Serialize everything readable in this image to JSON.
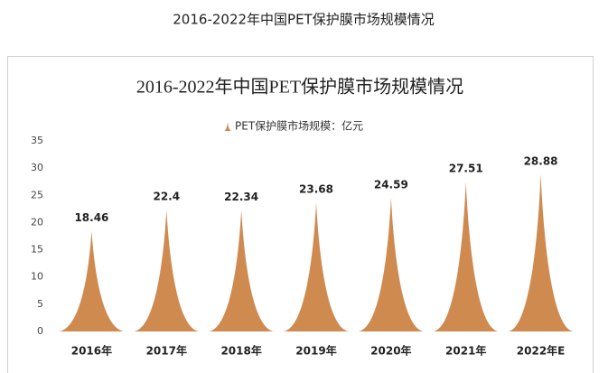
{
  "page_title": "2016-2022年中国PET保护膜市场规模情况",
  "chart_data": {
    "type": "spike",
    "title": "2016-2022年中国PET保护膜市场规模情况",
    "categories": [
      "2016年",
      "2017年",
      "2018年",
      "2019年",
      "2020年",
      "2021年",
      "2022年E"
    ],
    "series": [
      {
        "name": "PET保护膜市场规模：亿元",
        "color": "#cf8a50",
        "values": [
          18.46,
          22.4,
          22.34,
          23.68,
          24.59,
          27.51,
          28.88
        ]
      }
    ],
    "ylim": [
      0,
      35
    ],
    "yticks": [
      0,
      5,
      10,
      15,
      20,
      25,
      30,
      35
    ],
    "grid": false,
    "legend": "top"
  }
}
